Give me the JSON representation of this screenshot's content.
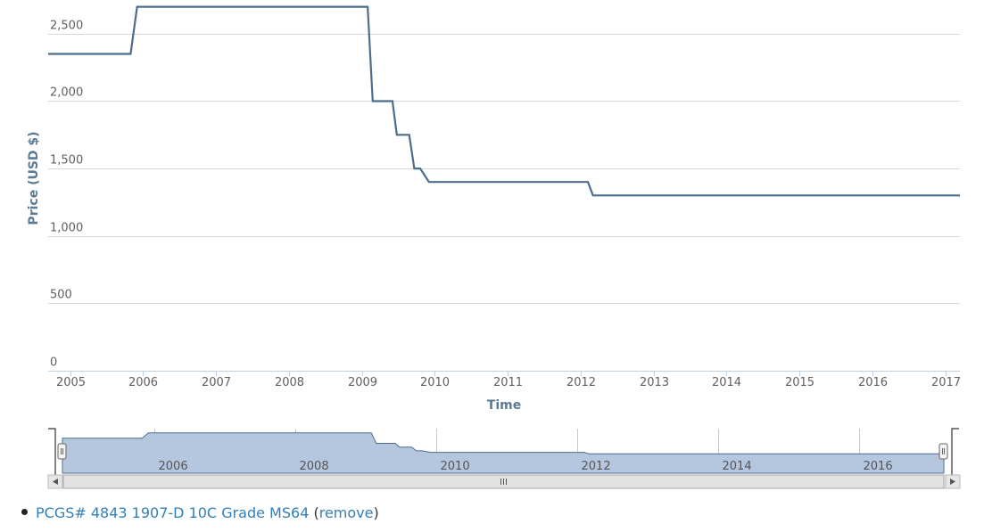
{
  "chart_data": {
    "type": "line",
    "ylabel": "Price (USD $)",
    "xlabel": "Time",
    "ylim": [
      0,
      2750
    ],
    "xlim": [
      2004.7,
      2017.2
    ],
    "yticks": [
      0,
      500,
      1000,
      1500,
      2000,
      2500
    ],
    "ytick_labels": [
      "0",
      "500",
      "1,000",
      "1,500",
      "2,000",
      "2,500"
    ],
    "xticks": [
      2005,
      2006,
      2007,
      2008,
      2009,
      2010,
      2011,
      2012,
      2013,
      2014,
      2015,
      2016,
      2017
    ],
    "xtick_labels": [
      "2005",
      "2006",
      "2007",
      "2008",
      "2009",
      "2010",
      "2011",
      "2012",
      "2013",
      "2014",
      "2015",
      "2016",
      "2017"
    ],
    "grid": true,
    "series": [
      {
        "color": "#4d6d8c",
        "x": [
          2004.7,
          2005.83,
          2005.92,
          2009.08,
          2009.15,
          2009.42,
          2009.48,
          2009.65,
          2009.72,
          2009.8,
          2009.92,
          2012.1,
          2012.17,
          2017.2
        ],
        "y": [
          2350,
          2350,
          2700,
          2700,
          2000,
          2000,
          1750,
          1750,
          1500,
          1500,
          1400,
          1400,
          1300,
          1300
        ]
      }
    ],
    "navigator": {
      "tick_values": [
        2006,
        2008,
        2010,
        2012,
        2014,
        2016
      ],
      "tick_labels": [
        "2006",
        "2008",
        "2010",
        "2012",
        "2014",
        "2016"
      ],
      "fill_color": "#b5c6df",
      "scrollbar_handle_icon": "grip-lines-icon",
      "scroll_left_icon": "left-arrow-icon",
      "scroll_right_icon": "right-arrow-icon"
    }
  },
  "legend": {
    "item_label": "PCGS# 4843 1907-D 10C Grade MS64",
    "open_paren": "(",
    "remove_label": "remove",
    "close_paren": ")"
  }
}
